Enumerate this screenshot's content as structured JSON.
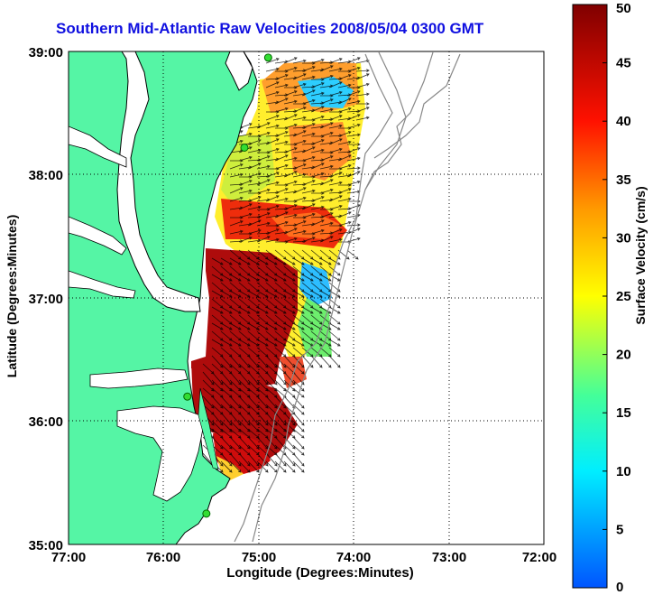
{
  "title": "Southern Mid-Atlantic Raw Velocities 2008/05/04 0300 GMT",
  "xlabel": "Longitude (Degrees:Minutes)",
  "ylabel": "Latitude (Degrees:Minutes)",
  "colorbar": {
    "label": "Surface Velocity (cm/s)",
    "ticks": [
      "0",
      "5",
      "10",
      "15",
      "20",
      "25",
      "30",
      "35",
      "40",
      "45",
      "50"
    ],
    "min": 0,
    "max": 50
  },
  "axes": {
    "x_ticks": [
      "77:00",
      "76:00",
      "75:00",
      "74:00",
      "73:00",
      "72:00"
    ],
    "y_ticks": [
      "39:00",
      "38:00",
      "37:00",
      "36:00",
      "35:00"
    ],
    "lon_range": [
      -77,
      -72
    ],
    "lat_range": [
      35,
      39
    ],
    "grid": "dotted"
  },
  "colors": {
    "land": "#55f5a5",
    "water_inlets": "#ffffff",
    "coastline": "#000000",
    "bathymetry": "#888888",
    "title": "#1010e0",
    "station": "#33dd33"
  },
  "stations": [
    {
      "lon": -74.9,
      "lat": 38.95
    },
    {
      "lon": -75.15,
      "lat": 38.22
    },
    {
      "lon": -75.75,
      "lat": 36.2
    },
    {
      "lon": -75.55,
      "lat": 35.25
    }
  ]
}
